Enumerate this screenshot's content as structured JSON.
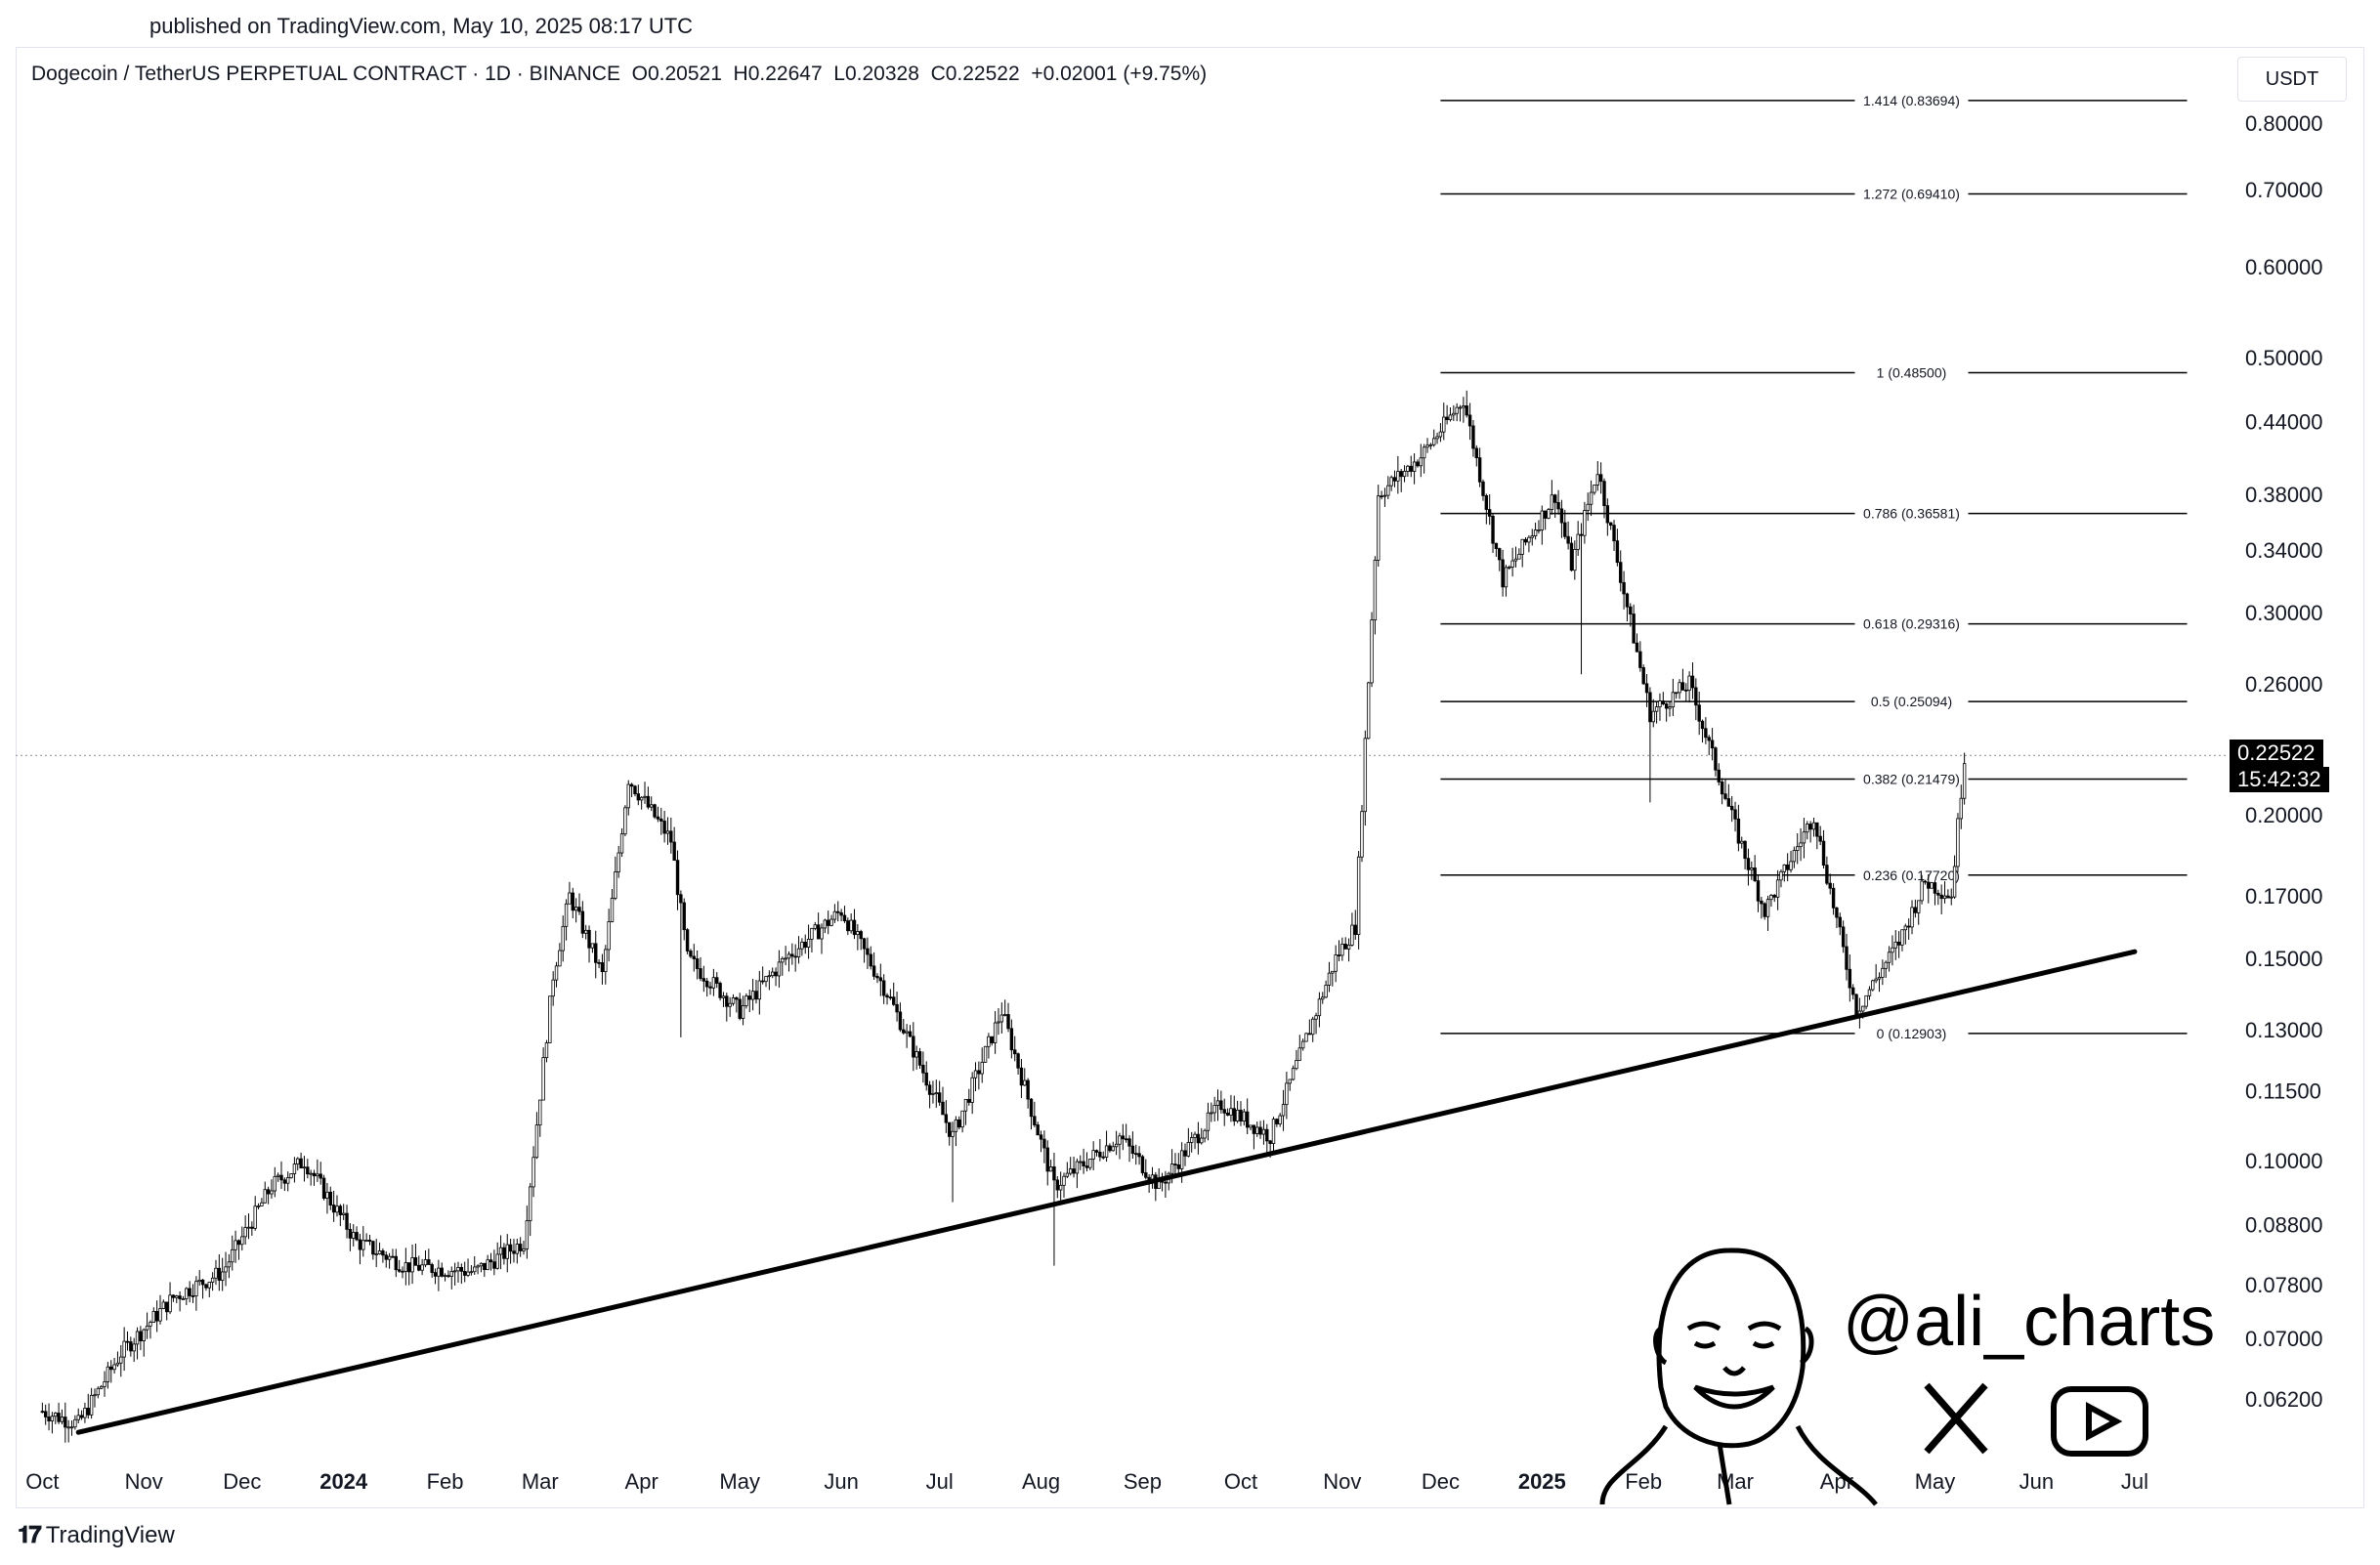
{
  "published": "published on TradingView.com, May 10, 2025 08:17 UTC",
  "header": {
    "title": "Dogecoin / TetherUS PERPETUAL CONTRACT · 1D · BINANCE",
    "open": "O0.20521",
    "high": "H0.22647",
    "low": "L0.20328",
    "close": "C0.22522",
    "change": "+0.02001 (+9.75%)"
  },
  "currency": "USDT",
  "last_price": {
    "value": "0.22522",
    "countdown": "15:42:32"
  },
  "watermark": {
    "handle": "@ali_charts",
    "icons": [
      "x-logo-icon",
      "youtube-icon"
    ]
  },
  "footer": {
    "brand": "TradingView"
  },
  "colors": {
    "candles": "#000000",
    "trendline": "#000000",
    "fib": "#000000",
    "grid_dotted": "#9598a1"
  },
  "chart_data": {
    "type": "candlestick",
    "scale": "log",
    "ylim": [
      0.055,
      0.9
    ],
    "x_ticks": [
      "Oct",
      "Nov",
      "Dec",
      "2024",
      "Feb",
      "Mar",
      "Apr",
      "May",
      "Jun",
      "Jul",
      "Aug",
      "Sep",
      "Oct",
      "Nov",
      "Dec",
      "2025",
      "Feb",
      "Mar",
      "Apr",
      "May",
      "Jun",
      "Jul"
    ],
    "y_ticks": [
      "0.80000",
      "0.70000",
      "0.60000",
      "0.50000",
      "0.44000",
      "0.38000",
      "0.34000",
      "0.30000",
      "0.26000",
      "0.20000",
      "0.17000",
      "0.15000",
      "0.13000",
      "0.11500",
      "0.10000",
      "0.08800",
      "0.07800",
      "0.07000",
      "0.06200"
    ],
    "y_tick_values": [
      0.8,
      0.7,
      0.6,
      0.5,
      0.44,
      0.38,
      0.34,
      0.3,
      0.26,
      0.2,
      0.17,
      0.15,
      0.13,
      0.115,
      0.1,
      0.088,
      0.078,
      0.07,
      0.062
    ],
    "fib_levels": [
      {
        "label": "1.414 (0.83694)",
        "value": 0.83694
      },
      {
        "label": "1.272 (0.69410)",
        "value": 0.6941
      },
      {
        "label": "1 (0.48500)",
        "value": 0.485
      },
      {
        "label": "0.786 (0.36581)",
        "value": 0.36581
      },
      {
        "label": "0.618 (0.29316)",
        "value": 0.29316
      },
      {
        "label": "0.5 (0.25094)",
        "value": 0.25094
      },
      {
        "label": "0.382 (0.21479)",
        "value": 0.21479
      },
      {
        "label": "0.236 (0.17720)",
        "value": 0.1772
      },
      {
        "label": "0 (0.12903)",
        "value": 0.12903
      }
    ],
    "trendline": [
      {
        "date": "2023-10-12",
        "value": 0.058
      },
      {
        "date": "2025-07-01",
        "value": 0.152
      }
    ],
    "price_path": [
      {
        "date": "2023-10-01",
        "value": 0.0605
      },
      {
        "date": "2023-10-12",
        "value": 0.059
      },
      {
        "date": "2023-10-25",
        "value": 0.068
      },
      {
        "date": "2023-11-10",
        "value": 0.076
      },
      {
        "date": "2023-11-25",
        "value": 0.08
      },
      {
        "date": "2023-12-10",
        "value": 0.095
      },
      {
        "date": "2023-12-20",
        "value": 0.1
      },
      {
        "date": "2024-01-05",
        "value": 0.085
      },
      {
        "date": "2024-01-20",
        "value": 0.081
      },
      {
        "date": "2024-02-10",
        "value": 0.08
      },
      {
        "date": "2024-02-25",
        "value": 0.085
      },
      {
        "date": "2024-03-05",
        "value": 0.145
      },
      {
        "date": "2024-03-10",
        "value": 0.17
      },
      {
        "date": "2024-03-20",
        "value": 0.145
      },
      {
        "date": "2024-03-28",
        "value": 0.215
      },
      {
        "date": "2024-04-10",
        "value": 0.19
      },
      {
        "date": "2024-04-15",
        "value": 0.15
      },
      {
        "date": "2024-05-01",
        "value": 0.135
      },
      {
        "date": "2024-05-15",
        "value": 0.15
      },
      {
        "date": "2024-06-01",
        "value": 0.165
      },
      {
        "date": "2024-06-15",
        "value": 0.14
      },
      {
        "date": "2024-07-05",
        "value": 0.105
      },
      {
        "date": "2024-07-20",
        "value": 0.135
      },
      {
        "date": "2024-08-05",
        "value": 0.095
      },
      {
        "date": "2024-08-25",
        "value": 0.105
      },
      {
        "date": "2024-09-06",
        "value": 0.095
      },
      {
        "date": "2024-09-25",
        "value": 0.112
      },
      {
        "date": "2024-10-10",
        "value": 0.105
      },
      {
        "date": "2024-10-30",
        "value": 0.15
      },
      {
        "date": "2024-11-05",
        "value": 0.16
      },
      {
        "date": "2024-11-12",
        "value": 0.38
      },
      {
        "date": "2024-11-25",
        "value": 0.41
      },
      {
        "date": "2024-12-08",
        "value": 0.46
      },
      {
        "date": "2024-12-20",
        "value": 0.32
      },
      {
        "date": "2025-01-05",
        "value": 0.38
      },
      {
        "date": "2025-01-10",
        "value": 0.33
      },
      {
        "date": "2025-01-18",
        "value": 0.4
      },
      {
        "date": "2025-02-03",
        "value": 0.245
      },
      {
        "date": "2025-02-15",
        "value": 0.26
      },
      {
        "date": "2025-03-01",
        "value": 0.195
      },
      {
        "date": "2025-03-10",
        "value": 0.165
      },
      {
        "date": "2025-03-25",
        "value": 0.2
      },
      {
        "date": "2025-04-07",
        "value": 0.135
      },
      {
        "date": "2025-04-20",
        "value": 0.155
      },
      {
        "date": "2025-04-28",
        "value": 0.175
      },
      {
        "date": "2025-05-06",
        "value": 0.17
      },
      {
        "date": "2025-05-10",
        "value": 0.22522
      }
    ]
  }
}
